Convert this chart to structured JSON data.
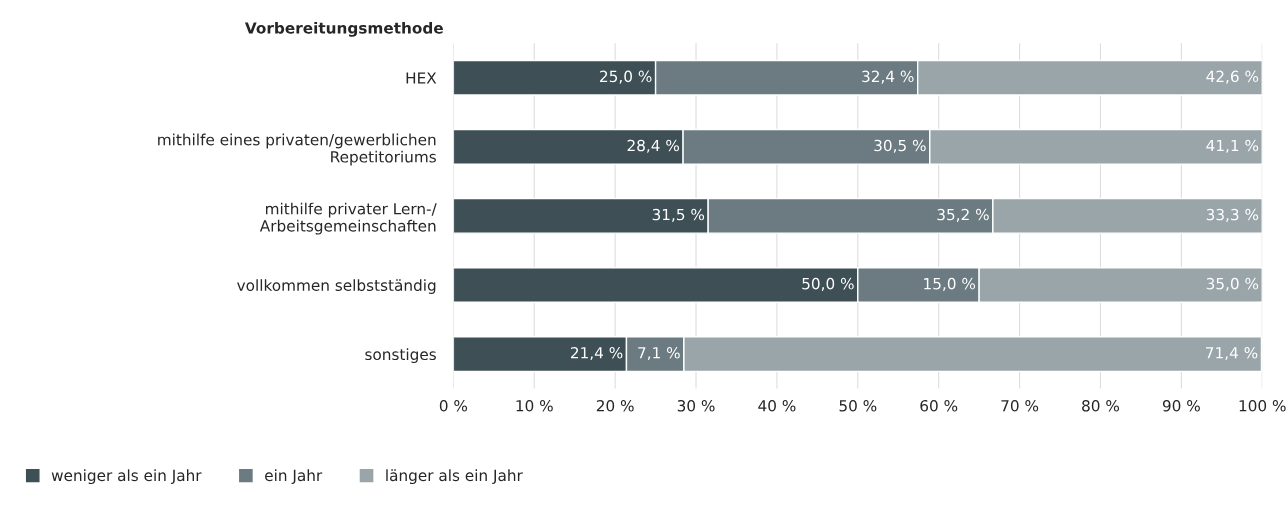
{
  "chart_data": {
    "type": "bar",
    "orientation": "horizontal",
    "stacked": true,
    "ylabel": "Vorbereitungsmethode",
    "categories": [
      "HEX",
      "mithilfe eines privaten/gewerblichen\nRepetitoriums",
      "mithilfe privater Lern-/\nArbeitsgemeinschaften",
      "vollkommen selbstständig",
      "sonstiges"
    ],
    "series": [
      {
        "name": "weniger als ein Jahr",
        "color": "#3e4f56",
        "values": [
          25.0,
          28.4,
          31.5,
          50.0,
          21.4
        ],
        "value_labels": [
          "25,0 %",
          "28,4 %",
          "31,5 %",
          "50,0 %",
          "21,4 %"
        ]
      },
      {
        "name": "ein Jahr",
        "color": "#6c7b81",
        "values": [
          32.4,
          30.5,
          35.2,
          15.0,
          7.1
        ],
        "value_labels": [
          "32,4 %",
          "30,5 %",
          "35,2 %",
          "15,0 %",
          "7,1 %"
        ]
      },
      {
        "name": "länger als ein Jahr",
        "color": "#9aa5aa",
        "values": [
          42.6,
          41.1,
          33.3,
          35.0,
          71.4
        ],
        "value_labels": [
          "42,6 %",
          "41,1 %",
          "33,3 %",
          "35,0 %",
          "71,4 %"
        ]
      }
    ],
    "xlim": [
      0,
      100
    ],
    "xticks": [
      {
        "value": 0,
        "label": "0 %"
      },
      {
        "value": 10,
        "label": "10 %"
      },
      {
        "value": 20,
        "label": "20 %"
      },
      {
        "value": 30,
        "label": "30 %"
      },
      {
        "value": 40,
        "label": "40 %"
      },
      {
        "value": 50,
        "label": "50 %"
      },
      {
        "value": 60,
        "label": "60 %"
      },
      {
        "value": 70,
        "label": "70 %"
      },
      {
        "value": 80,
        "label": "80 %"
      },
      {
        "value": 90,
        "label": "90 %"
      },
      {
        "value": 100,
        "label": "100 %"
      }
    ],
    "grid": "x",
    "legend": "bottom left"
  }
}
